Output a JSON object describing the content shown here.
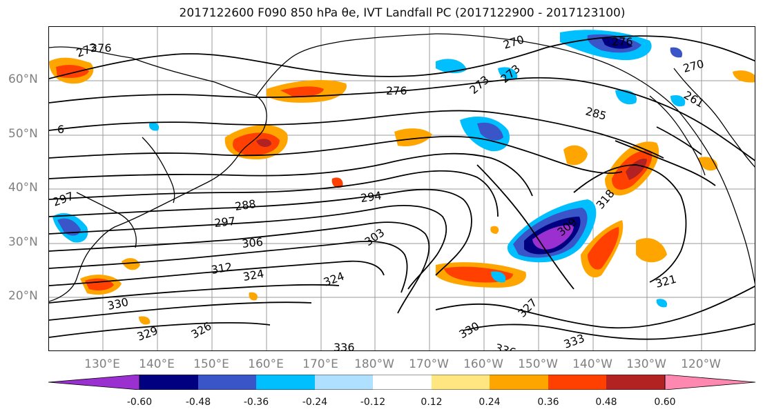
{
  "title_text": "2017122600 F090 850 hPa θe, IVT Landfall PC (2017122900 - 2017123100)",
  "lat_labels": [
    "60°N",
    "50°N",
    "40°N",
    "30°N",
    "20°N"
  ],
  "lon_labels": [
    "130°E",
    "140°E",
    "150°E",
    "160°E",
    "170°E",
    "180°W",
    "170°W",
    "160°W",
    "150°W",
    "140°W",
    "130°W",
    "120°W"
  ],
  "contour_labels": [
    "273",
    "276",
    "270",
    "276",
    "270",
    "273",
    "276",
    "273",
    "285",
    "261",
    "6",
    "288",
    "294",
    "297",
    "306",
    "303",
    "312",
    "324",
    "324",
    "330",
    "327",
    "321",
    "330",
    "336",
    "333",
    "336",
    "326",
    "329",
    "297",
    "309",
    "318"
  ],
  "colorbar": {
    "ticks": [
      "-0.60",
      "-0.48",
      "-0.36",
      "-0.24",
      "-0.12",
      "0.12",
      "0.24",
      "0.36",
      "0.48",
      "0.60"
    ],
    "colors": [
      "#9b30d0",
      "#000080",
      "#3a55c8",
      "#00bfff",
      "#b0e0ff",
      "#ffffff",
      "#ffe680",
      "#ffa500",
      "#ff4000",
      "#b22222",
      "#ff88b0"
    ]
  }
}
